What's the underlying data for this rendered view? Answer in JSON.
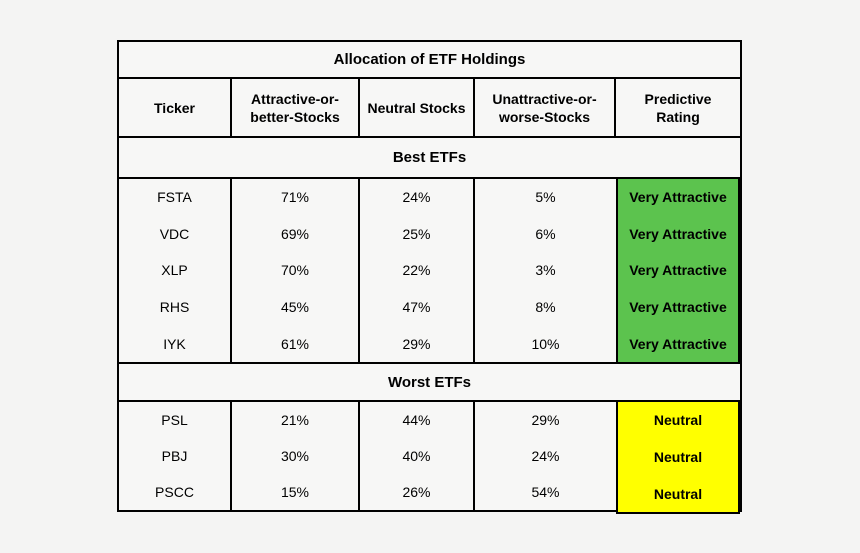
{
  "chart_data": {
    "type": "table",
    "title": "Allocation of ETF Holdings",
    "columns": [
      "Ticker",
      "Attractive-or-better-Stocks",
      "Neutral Stocks",
      "Unattractive-or-worse-Stocks",
      "Predictive Rating"
    ],
    "sections": [
      {
        "label": "Best ETFs",
        "rows": [
          {
            "ticker": "FSTA",
            "attractive": "71%",
            "neutral": "24%",
            "unattractive": "5%",
            "rating": "Very Attractive"
          },
          {
            "ticker": "VDC",
            "attractive": "69%",
            "neutral": "25%",
            "unattractive": "6%",
            "rating": "Very Attractive"
          },
          {
            "ticker": "XLP",
            "attractive": "70%",
            "neutral": "22%",
            "unattractive": "3%",
            "rating": "Very Attractive"
          },
          {
            "ticker": "RHS",
            "attractive": "45%",
            "neutral": "47%",
            "unattractive": "8%",
            "rating": "Very Attractive"
          },
          {
            "ticker": "IYK",
            "attractive": "61%",
            "neutral": "29%",
            "unattractive": "10%",
            "rating": "Very Attractive"
          }
        ]
      },
      {
        "label": "Worst ETFs",
        "rows": [
          {
            "ticker": "PSL",
            "attractive": "21%",
            "neutral": "44%",
            "unattractive": "29%",
            "rating": "Neutral"
          },
          {
            "ticker": "PBJ",
            "attractive": "30%",
            "neutral": "40%",
            "unattractive": "24%",
            "rating": "Neutral"
          },
          {
            "ticker": "PSCC",
            "attractive": "15%",
            "neutral": "26%",
            "unattractive": "54%",
            "rating": "Neutral"
          }
        ]
      }
    ]
  },
  "colors": {
    "best_rating_bg": "#5cc34e",
    "worst_rating_bg": "#ffff00",
    "border": "#000000",
    "page_bg": "#f4f4f3",
    "text": "#000000"
  }
}
